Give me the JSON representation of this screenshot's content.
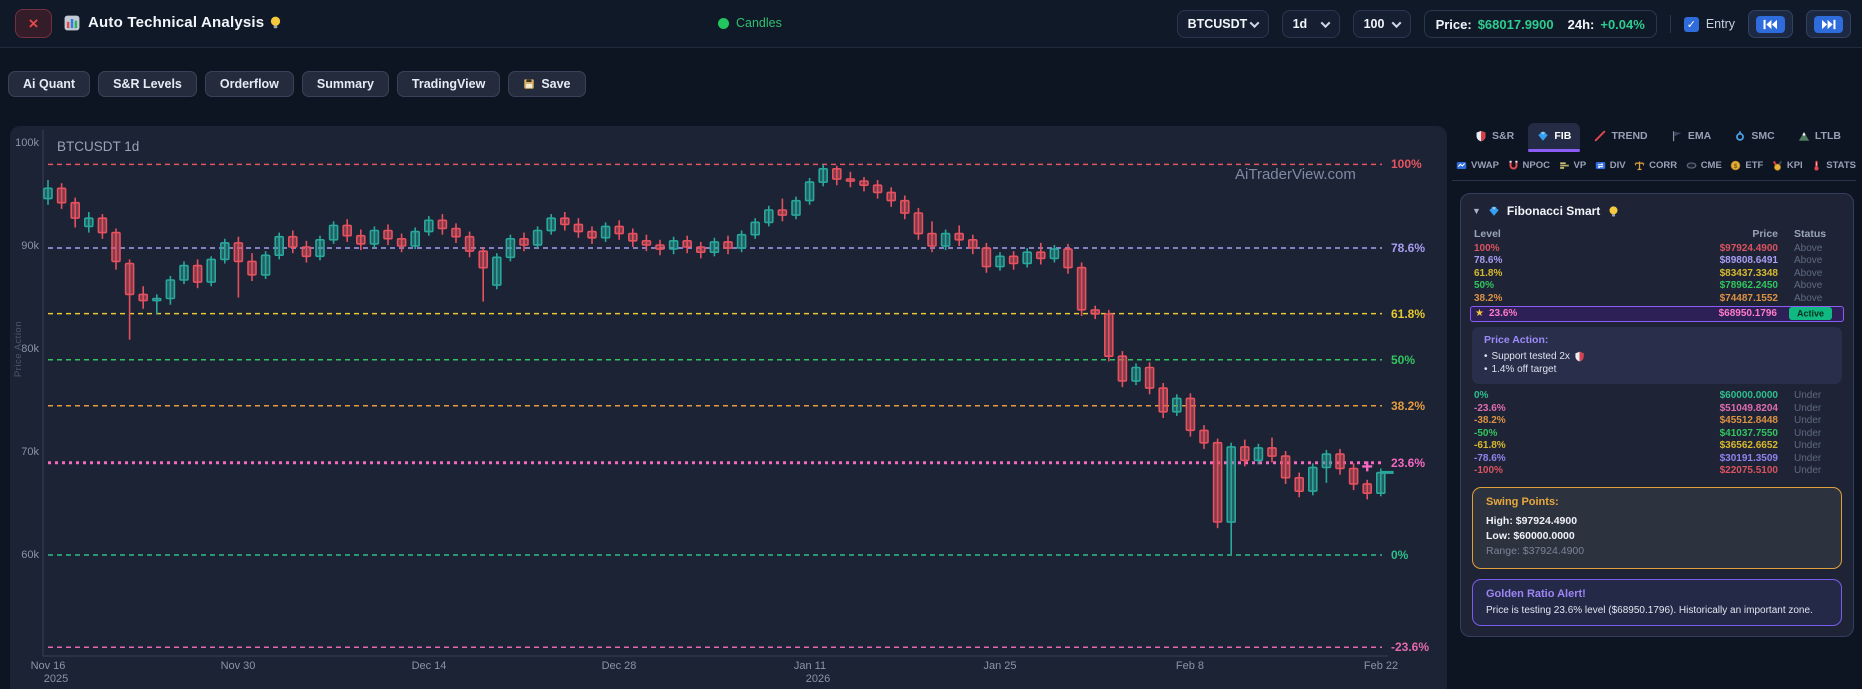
{
  "topbar": {
    "close_glyph": "×",
    "title": "Auto Technical Analysis",
    "mode_label": "Candles",
    "symbol": "BTCUSDT",
    "interval": "1d",
    "bars": "100",
    "price_label": "Price:",
    "price": "$68017.9900",
    "change_label": "24h:",
    "change": "+0.04%",
    "entry_label": "Entry",
    "check_glyph": "✓"
  },
  "toolbar": {
    "buttons": [
      "Ai Quant",
      "S&R Levels",
      "Orderflow",
      "Summary",
      "TradingView"
    ],
    "save_label": "Save"
  },
  "chart": {
    "symbol_label": "BTCUSDT 1d",
    "watermark": "AiTraderView.com",
    "axis_label": "Price Action",
    "y_ticks": [
      {
        "label": "100k",
        "price": 100000
      },
      {
        "label": "90k",
        "price": 90000
      },
      {
        "label": "80k",
        "price": 80000
      },
      {
        "label": "70k",
        "price": 70000
      },
      {
        "label": "60k",
        "price": 60000
      }
    ],
    "x_ticks": [
      {
        "label": "Nov 16",
        "sub": "2025",
        "day": 0
      },
      {
        "label": "Nov 30",
        "sub": "",
        "day": 14
      },
      {
        "label": "Dec 14",
        "sub": "",
        "day": 28
      },
      {
        "label": "Dec 28",
        "sub": "",
        "day": 42
      },
      {
        "label": "Jan 11",
        "sub": "2026",
        "day": 56
      },
      {
        "label": "Jan 25",
        "sub": "",
        "day": 70
      },
      {
        "label": "Feb 8",
        "sub": "",
        "day": 84
      },
      {
        "label": "Feb 22",
        "sub": "",
        "day": 98
      }
    ],
    "fib_lines": [
      {
        "label": "100%",
        "price": 97924.49,
        "color": "#e5545f",
        "thick": false
      },
      {
        "label": "78.6%",
        "price": 89808.6491,
        "color": "#a79df2",
        "thick": false
      },
      {
        "label": "61.8%",
        "price": 83437.3348,
        "color": "#e6c832",
        "thick": false
      },
      {
        "label": "50%",
        "price": 78962.245,
        "color": "#33c45f",
        "thick": false
      },
      {
        "label": "38.2%",
        "price": 74487.1552,
        "color": "#e59a3f",
        "thick": false
      },
      {
        "label": "23.6%",
        "price": 68950.1796,
        "color": "#f468c0",
        "thick": true
      },
      {
        "label": "0%",
        "price": 60000.0,
        "color": "#2fbd8c",
        "thick": false
      },
      {
        "label": "-23.6%",
        "price": 51049.8204,
        "color": "#e46aae",
        "thick": false
      }
    ],
    "markers": {
      "plus": {
        "day": 97,
        "price": 68600,
        "color": "#f468c0"
      },
      "dash": {
        "day": 98.5,
        "price": 68020,
        "color": "#2aa79b"
      }
    }
  },
  "chart_data": {
    "type": "candlestick",
    "symbol": "BTCUSDT",
    "interval": "1d",
    "x_start": "Nov 16 2025",
    "x_end": "Feb 22 2026",
    "ohlc": [
      [
        94600,
        96400,
        94000,
        95600
      ],
      [
        95600,
        96100,
        93600,
        94200
      ],
      [
        94200,
        94700,
        91800,
        92700
      ],
      [
        91900,
        93300,
        91300,
        92700
      ],
      [
        92700,
        93100,
        90700,
        91300
      ],
      [
        91300,
        91700,
        87700,
        88500
      ],
      [
        88300,
        88700,
        80900,
        85300
      ],
      [
        85300,
        86100,
        83900,
        84700
      ],
      [
        84700,
        85300,
        83400,
        84900
      ],
      [
        84900,
        87100,
        84300,
        86700
      ],
      [
        86700,
        88500,
        86300,
        88100
      ],
      [
        88100,
        88700,
        85900,
        86500
      ],
      [
        86500,
        89000,
        86100,
        88700
      ],
      [
        88700,
        90700,
        88300,
        90300
      ],
      [
        90300,
        90900,
        85000,
        88500
      ],
      [
        88500,
        89300,
        86600,
        87200
      ],
      [
        87200,
        89500,
        86800,
        89100
      ],
      [
        89100,
        91300,
        88700,
        90900
      ],
      [
        90900,
        91500,
        89300,
        89900
      ],
      [
        89900,
        90500,
        88400,
        89000
      ],
      [
        89000,
        91000,
        88600,
        90600
      ],
      [
        90600,
        92400,
        90200,
        92000
      ],
      [
        92000,
        92600,
        90400,
        91000
      ],
      [
        91000,
        91600,
        89600,
        90200
      ],
      [
        90200,
        91900,
        89800,
        91500
      ],
      [
        91500,
        92100,
        90100,
        90700
      ],
      [
        90700,
        91200,
        89400,
        90000
      ],
      [
        90000,
        91800,
        89700,
        91400
      ],
      [
        91400,
        92900,
        91000,
        92500
      ],
      [
        92500,
        93100,
        91100,
        91700
      ],
      [
        91700,
        92200,
        90300,
        90900
      ],
      [
        90900,
        91400,
        88900,
        89500
      ],
      [
        89500,
        89900,
        84600,
        87900
      ],
      [
        86200,
        89300,
        85800,
        88900
      ],
      [
        88900,
        91100,
        88500,
        90700
      ],
      [
        90700,
        91300,
        89500,
        90100
      ],
      [
        90100,
        91900,
        89800,
        91500
      ],
      [
        91500,
        93100,
        91100,
        92700
      ],
      [
        92700,
        93300,
        91500,
        92100
      ],
      [
        92100,
        92700,
        90800,
        91400
      ],
      [
        91400,
        91900,
        90200,
        90800
      ],
      [
        90800,
        92300,
        90400,
        91900
      ],
      [
        91900,
        92500,
        90600,
        91200
      ],
      [
        91200,
        91700,
        89900,
        90500
      ],
      [
        90500,
        91100,
        89500,
        90100
      ],
      [
        90100,
        90600,
        89100,
        89700
      ],
      [
        89700,
        90900,
        89200,
        90500
      ],
      [
        90500,
        91000,
        89300,
        89900
      ],
      [
        89900,
        90400,
        88800,
        89400
      ],
      [
        89400,
        90800,
        89000,
        90400
      ],
      [
        90400,
        91000,
        89200,
        89800
      ],
      [
        89800,
        91500,
        89400,
        91100
      ],
      [
        91100,
        92700,
        90700,
        92300
      ],
      [
        92300,
        93900,
        91900,
        93500
      ],
      [
        93500,
        94600,
        92400,
        93000
      ],
      [
        93000,
        94800,
        92600,
        94400
      ],
      [
        94400,
        96600,
        94000,
        96200
      ],
      [
        96200,
        97900,
        95800,
        97500
      ],
      [
        97500,
        97800,
        95900,
        96500
      ],
      [
        96500,
        97200,
        95700,
        96300
      ],
      [
        96300,
        96700,
        95300,
        95900
      ],
      [
        95900,
        96400,
        94600,
        95200
      ],
      [
        95200,
        95700,
        93800,
        94400
      ],
      [
        94400,
        94900,
        92600,
        93200
      ],
      [
        93200,
        93700,
        90600,
        91200
      ],
      [
        91200,
        92400,
        89400,
        90000
      ],
      [
        90000,
        91600,
        89600,
        91200
      ],
      [
        91200,
        92000,
        90000,
        90600
      ],
      [
        90600,
        91100,
        89200,
        89800
      ],
      [
        89800,
        90300,
        87400,
        88000
      ],
      [
        88000,
        89400,
        87600,
        89000
      ],
      [
        89000,
        89500,
        87700,
        88300
      ],
      [
        88300,
        89800,
        87900,
        89400
      ],
      [
        89400,
        90300,
        88200,
        88800
      ],
      [
        88800,
        90100,
        88400,
        89700
      ],
      [
        89700,
        90200,
        87300,
        87900
      ],
      [
        87900,
        88400,
        83200,
        83800
      ],
      [
        83800,
        84200,
        82900,
        83400
      ],
      [
        83400,
        83800,
        78800,
        79300
      ],
      [
        79300,
        79800,
        76300,
        76900
      ],
      [
        76900,
        78600,
        76500,
        78200
      ],
      [
        78200,
        78700,
        75600,
        76200
      ],
      [
        76200,
        76700,
        73300,
        73900
      ],
      [
        73900,
        75600,
        73500,
        75200
      ],
      [
        75200,
        75700,
        71500,
        72100
      ],
      [
        72100,
        72600,
        70300,
        70900
      ],
      [
        70900,
        71300,
        62600,
        63200
      ],
      [
        63200,
        70900,
        60000,
        70500
      ],
      [
        70500,
        71200,
        68600,
        69200
      ],
      [
        69200,
        70800,
        68800,
        70400
      ],
      [
        70400,
        71400,
        69000,
        69600
      ],
      [
        69600,
        70100,
        66900,
        67500
      ],
      [
        67500,
        68000,
        65600,
        66200
      ],
      [
        66200,
        68900,
        65800,
        68500
      ],
      [
        68500,
        70200,
        67000,
        69800
      ],
      [
        69800,
        70300,
        67800,
        68400
      ],
      [
        68400,
        68900,
        66300,
        66900
      ],
      [
        66900,
        67300,
        65400,
        66000
      ],
      [
        66000,
        68400,
        65700,
        68000
      ]
    ]
  },
  "right_panel": {
    "tabs_row1": [
      {
        "icon": "shield",
        "label": "S&R",
        "active": false
      },
      {
        "icon": "diamond",
        "label": "FIB",
        "active": true
      },
      {
        "icon": "trend",
        "label": "TREND",
        "active": false
      },
      {
        "icon": "flag",
        "label": "EMA",
        "active": false
      },
      {
        "icon": "hook",
        "label": "SMC",
        "active": false
      },
      {
        "icon": "mountain",
        "label": "LTLB",
        "active": false
      }
    ],
    "tabs_row2": [
      {
        "icon": "vwap",
        "label": "VWAP"
      },
      {
        "icon": "magnet",
        "label": "NPOC"
      },
      {
        "icon": "bars",
        "label": "VP"
      },
      {
        "icon": "swap",
        "label": "DIV"
      },
      {
        "icon": "scales",
        "label": "CORR"
      },
      {
        "icon": "ellipse",
        "label": "CME"
      },
      {
        "icon": "coin",
        "label": "ETF"
      },
      {
        "icon": "medal",
        "label": "KPI"
      },
      {
        "icon": "thermo",
        "label": "STATS"
      }
    ],
    "fib": {
      "collapse_glyph": "▼",
      "title": "Fibonacci Smart",
      "headers": {
        "level": "Level",
        "price": "Price",
        "status": "Status"
      },
      "rows_above": [
        {
          "level": "100%",
          "price": "$97924.4900",
          "status": "Above",
          "color": "#d95360"
        },
        {
          "level": "78.6%",
          "price": "$89808.6491",
          "status": "Above",
          "color": "#a79df2"
        },
        {
          "level": "61.8%",
          "price": "$83437.3348",
          "status": "Above",
          "color": "#d8b92e"
        },
        {
          "level": "50%",
          "price": "$78962.2450",
          "status": "Above",
          "color": "#33c45f"
        },
        {
          "level": "38.2%",
          "price": "$74487.1552",
          "status": "Above",
          "color": "#dd9243"
        }
      ],
      "active_row": {
        "star": "★",
        "level": "23.6%",
        "price": "$68950.1796",
        "status": "Active",
        "color": "#ff7ac9"
      },
      "price_action": {
        "title": "Price Action:",
        "bullets": [
          "Support tested 2x",
          "1.4% off target"
        ]
      },
      "rows_below": [
        {
          "level": "0%",
          "price": "$60000.0000",
          "status": "Under",
          "color": "#2fbd8c"
        },
        {
          "level": "-23.6%",
          "price": "$51049.8204",
          "status": "Under",
          "color": "#e06cb0"
        },
        {
          "level": "-38.2%",
          "price": "$45512.8448",
          "status": "Under",
          "color": "#dd9243"
        },
        {
          "level": "-50%",
          "price": "$41037.7550",
          "status": "Under",
          "color": "#33c45f"
        },
        {
          "level": "-61.8%",
          "price": "$36562.6652",
          "status": "Under",
          "color": "#d8b92e"
        },
        {
          "level": "-78.6%",
          "price": "$30191.3509",
          "status": "Under",
          "color": "#8f83ee"
        },
        {
          "level": "-100%",
          "price": "$22075.5100",
          "status": "Under",
          "color": "#d95360"
        }
      ],
      "swing": {
        "title": "Swing Points:",
        "high_label": "High:",
        "high": "$97924.4900",
        "low_label": "Low:",
        "low": "$60000.0000",
        "range_label": "Range:",
        "range": "$37924.4900"
      },
      "alert": {
        "title": "Golden Ratio Alert!",
        "text": "Price is testing 23.6% level ($68950.1796). Historically an important zone."
      }
    }
  }
}
